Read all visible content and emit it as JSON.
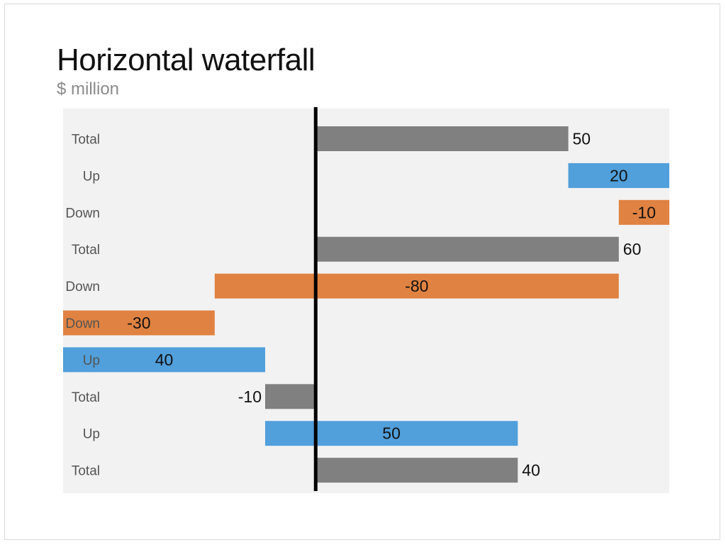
{
  "title": "Horizontal waterfall",
  "subtitle": "$ million",
  "colors": {
    "total": "#808080",
    "up": "#519fdb",
    "down": "#e08241",
    "plot_background": "#f2f2f2",
    "zero_line": "#000000"
  },
  "chart_data": {
    "type": "bar",
    "orientation": "horizontal",
    "subtype": "waterfall",
    "title": "Horizontal waterfall",
    "subtitle": "$ million",
    "xlim": [
      -50,
      70
    ],
    "grid": false,
    "categories": [
      "Total",
      "Up",
      "Down",
      "Total",
      "Down",
      "Down",
      "Up",
      "Total",
      "Up",
      "Total"
    ],
    "kinds": [
      "total",
      "up",
      "down",
      "total",
      "down",
      "down",
      "up",
      "total",
      "up",
      "total"
    ],
    "values": [
      50,
      20,
      -10,
      60,
      -80,
      -30,
      40,
      -10,
      50,
      40
    ],
    "value_labels": [
      "50",
      "20",
      "-10",
      "60",
      "-80",
      "-30",
      "40",
      "-10",
      "50",
      "40"
    ]
  }
}
